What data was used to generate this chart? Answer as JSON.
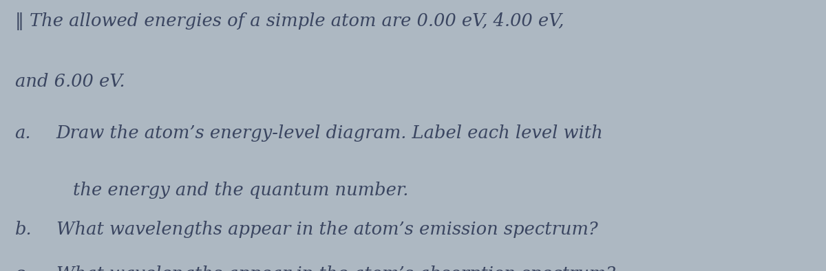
{
  "background_color": "#adb8c2",
  "text_color": "#3a4560",
  "title_prefix": "‖",
  "title_line1": " The allowed energies of a simple atom are 0.00 eV, 4.00 eV,",
  "title_line2": "and 6.00 eV.",
  "line_a_label": "a.",
  "line_a1": "Draw the atom’s energy-level diagram. Label each level with",
  "line_a2": "the energy and the quantum number.",
  "line_b_label": "b.",
  "line_b": "What wavelengths appear in the atom’s emission spectrum?",
  "line_c_label": "c.",
  "line_c": "What wavelengths appear in the atom’s absorption spectrum?",
  "font_size": 18.5,
  "indent_label": 0.018,
  "indent_text": 0.068,
  "indent_cont": 0.088
}
